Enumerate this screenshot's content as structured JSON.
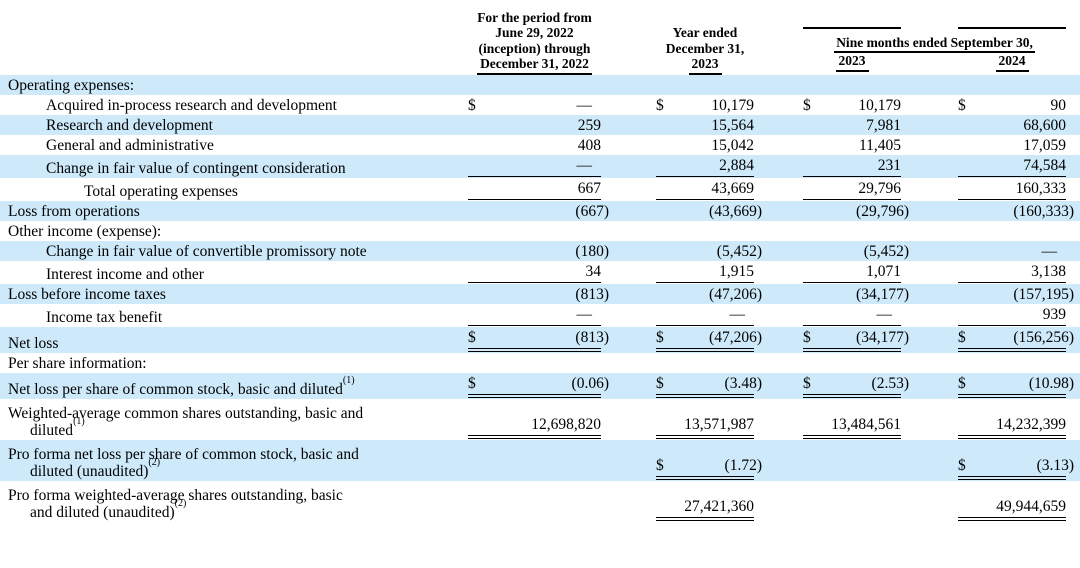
{
  "table": {
    "header": {
      "col1": {
        "lines": [
          "For the period from",
          "June 29, 2022",
          "(inception) through",
          "December 31, 2022"
        ]
      },
      "col2": {
        "lines": [
          "Year ended",
          "December 31,"
        ],
        "year": "2023"
      },
      "group": {
        "label": "Nine months ended September 30,",
        "col3_year": "2023",
        "col4_year": "2024"
      }
    },
    "shading_color": "#cde9fa",
    "rows": [
      {
        "label": "Operating expenses:",
        "indent": 0,
        "shaded": true,
        "cells": [
          null,
          null,
          null,
          null
        ]
      },
      {
        "label": "Acquired in-process research and development",
        "indent": 1,
        "shaded": false,
        "cells": [
          {
            "d": "$",
            "v": "—"
          },
          {
            "d": "$",
            "v": "10,179"
          },
          {
            "d": "$",
            "v": "10,179"
          },
          {
            "d": "$",
            "v": "90"
          }
        ]
      },
      {
        "label": "Research and development",
        "indent": 1,
        "shaded": true,
        "cells": [
          {
            "v": "259"
          },
          {
            "v": "15,564"
          },
          {
            "v": "7,981"
          },
          {
            "v": "68,600"
          }
        ]
      },
      {
        "label": "General and administrative",
        "indent": 1,
        "shaded": false,
        "cells": [
          {
            "v": "408"
          },
          {
            "v": "15,042"
          },
          {
            "v": "11,405"
          },
          {
            "v": "17,059"
          }
        ]
      },
      {
        "label": "Change in fair value of contingent consideration",
        "indent": 1,
        "shaded": true,
        "cells": [
          {
            "v": "—",
            "b": "s"
          },
          {
            "v": "2,884",
            "b": "s"
          },
          {
            "v": "231",
            "b": "s"
          },
          {
            "v": "74,584",
            "b": "s"
          }
        ]
      },
      {
        "label": "Total operating expenses",
        "indent": 2,
        "shaded": false,
        "cells": [
          {
            "v": "667",
            "b": "s"
          },
          {
            "v": "43,669",
            "b": "s"
          },
          {
            "v": "29,796",
            "b": "s"
          },
          {
            "v": "160,333",
            "b": "s"
          }
        ]
      },
      {
        "label": "Loss from operations",
        "indent": 0,
        "shaded": true,
        "cells": [
          {
            "v": "(667)"
          },
          {
            "v": "(43,669)"
          },
          {
            "v": "(29,796)"
          },
          {
            "v": "(160,333)"
          }
        ]
      },
      {
        "label": "Other income (expense):",
        "indent": 0,
        "shaded": false,
        "cells": [
          null,
          null,
          null,
          null
        ]
      },
      {
        "label": "Change in fair value of convertible promissory note",
        "indent": 1,
        "shaded": true,
        "cells": [
          {
            "v": "(180)"
          },
          {
            "v": "(5,452)"
          },
          {
            "v": "(5,452)"
          },
          {
            "v": "—"
          }
        ]
      },
      {
        "label": "Interest income and other",
        "indent": 1,
        "shaded": false,
        "cells": [
          {
            "v": "34",
            "b": "s"
          },
          {
            "v": "1,915",
            "b": "s"
          },
          {
            "v": "1,071",
            "b": "s"
          },
          {
            "v": "3,138",
            "b": "s"
          }
        ]
      },
      {
        "label": "Loss before income taxes",
        "indent": 0,
        "shaded": true,
        "cells": [
          {
            "v": "(813)"
          },
          {
            "v": "(47,206)"
          },
          {
            "v": "(34,177)"
          },
          {
            "v": "(157,195)"
          }
        ]
      },
      {
        "label": "Income tax benefit",
        "indent": 1,
        "shaded": false,
        "cells": [
          {
            "v": "—",
            "b": "s"
          },
          {
            "v": "—",
            "b": "s"
          },
          {
            "v": "—",
            "b": "s"
          },
          {
            "v": "939",
            "b": "s"
          }
        ]
      },
      {
        "label": "Net loss",
        "indent": 0,
        "shaded": true,
        "cells": [
          {
            "d": "$",
            "v": "(813)",
            "b": "d"
          },
          {
            "d": "$",
            "v": "(47,206)",
            "b": "d"
          },
          {
            "d": "$",
            "v": "(34,177)",
            "b": "d"
          },
          {
            "d": "$",
            "v": "(156,256)",
            "b": "d"
          }
        ]
      },
      {
        "label": "Per share information:",
        "indent": 0,
        "shaded": false,
        "cells": [
          null,
          null,
          null,
          null
        ]
      },
      {
        "label": "Net loss per share of common stock, basic and diluted",
        "sup": "(1)",
        "indent": 0,
        "shaded": true,
        "cells": [
          {
            "d": "$",
            "v": "(0.06)",
            "b": "d"
          },
          {
            "d": "$",
            "v": "(3.48)",
            "b": "d"
          },
          {
            "d": "$",
            "v": "(2.53)",
            "b": "d"
          },
          {
            "d": "$",
            "v": "(10.98)",
            "b": "d"
          }
        ]
      },
      {
        "label": "Weighted-average common shares outstanding, basic and",
        "label2": "diluted",
        "sup": "(1)",
        "indent": 0,
        "shaded": false,
        "cells": [
          {
            "v": "12,698,820",
            "b": "d"
          },
          {
            "v": "13,571,987",
            "b": "d"
          },
          {
            "v": "13,484,561",
            "b": "d"
          },
          {
            "v": "14,232,399",
            "b": "d"
          }
        ]
      },
      {
        "label": "Pro forma net loss per share of common stock, basic and",
        "label2": "diluted (unaudited)",
        "sup": "(2)",
        "indent": 0,
        "shaded": true,
        "cells": [
          null,
          {
            "d": "$",
            "v": "(1.72)",
            "b": "d"
          },
          null,
          {
            "d": "$",
            "v": "(3.13)",
            "b": "d"
          }
        ]
      },
      {
        "label": "Pro forma weighted-average shares outstanding, basic",
        "label2": "and diluted (unaudited)",
        "sup": "(2)",
        "indent": 0,
        "shaded": false,
        "cells": [
          null,
          {
            "v": "27,421,360",
            "b": "d"
          },
          null,
          {
            "v": "49,944,659",
            "b": "d"
          }
        ]
      }
    ]
  }
}
